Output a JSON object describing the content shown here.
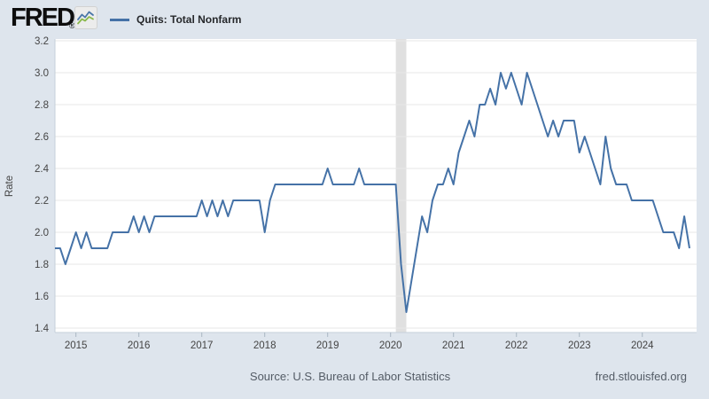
{
  "header": {
    "logo_text": "FRED",
    "registered_mark": "®",
    "legend_label": "Quits: Total Nonfarm"
  },
  "footer": {
    "source": "Source: U.S. Bureau of Labor Statistics",
    "site": "fred.stlouisfed.org"
  },
  "colors": {
    "background": "#dee5ed",
    "plot_bg": "#ffffff",
    "line": "#4572a7",
    "grid": "#e7e7e7",
    "axis": "#c6d0da",
    "tick": "#aab7c3",
    "tick_label": "#444444",
    "recession_band": "#e0e0e0",
    "legend_swatch": "#4572a7",
    "logo_icon_blue": "#4a76a8",
    "logo_icon_green": "#8ab84a"
  },
  "chart_data": {
    "type": "line",
    "series_name": "Quits: Total Nonfarm",
    "ylabel": "Rate",
    "ylim": [
      1.4,
      3.2
    ],
    "y_tick_step": 0.2,
    "y_tick_labels": [
      "1.4",
      "1.6",
      "1.8",
      "2.0",
      "2.2",
      "2.4",
      "2.6",
      "2.8",
      "3.0",
      "3.2"
    ],
    "grid": true,
    "legend_position": "top-left",
    "frequency": "monthly",
    "start_month": "2014-09",
    "end_month": "2024-10",
    "values": [
      1.9,
      1.9,
      1.8,
      1.9,
      2.0,
      1.9,
      2.0,
      1.9,
      1.9,
      1.9,
      1.9,
      2.0,
      2.0,
      2.0,
      2.0,
      2.1,
      2.0,
      2.1,
      2.0,
      2.1,
      2.1,
      2.1,
      2.1,
      2.1,
      2.1,
      2.1,
      2.1,
      2.1,
      2.2,
      2.1,
      2.2,
      2.1,
      2.2,
      2.1,
      2.2,
      2.2,
      2.2,
      2.2,
      2.2,
      2.2,
      2.0,
      2.2,
      2.3,
      2.3,
      2.3,
      2.3,
      2.3,
      2.3,
      2.3,
      2.3,
      2.3,
      2.3,
      2.4,
      2.3,
      2.3,
      2.3,
      2.3,
      2.3,
      2.4,
      2.3,
      2.3,
      2.3,
      2.3,
      2.3,
      2.3,
      2.3,
      1.8,
      1.5,
      1.7,
      1.9,
      2.1,
      2.0,
      2.2,
      2.3,
      2.3,
      2.4,
      2.3,
      2.5,
      2.6,
      2.7,
      2.6,
      2.8,
      2.8,
      2.9,
      2.8,
      3.0,
      2.9,
      3.0,
      2.9,
      2.8,
      3.0,
      2.9,
      2.8,
      2.7,
      2.6,
      2.7,
      2.6,
      2.7,
      2.7,
      2.7,
      2.5,
      2.6,
      2.5,
      2.4,
      2.3,
      2.6,
      2.4,
      2.3,
      2.3,
      2.3,
      2.2,
      2.2,
      2.2,
      2.2,
      2.2,
      2.1,
      2.0,
      2.0,
      2.0,
      1.9,
      2.1,
      1.9
    ],
    "x_ticks": [
      {
        "label": "2015",
        "month_index": 4
      },
      {
        "label": "2016",
        "month_index": 16
      },
      {
        "label": "2017",
        "month_index": 28
      },
      {
        "label": "2018",
        "month_index": 40
      },
      {
        "label": "2019",
        "month_index": 52
      },
      {
        "label": "2020",
        "month_index": 64
      },
      {
        "label": "2021",
        "month_index": 76
      },
      {
        "label": "2022",
        "month_index": 88
      },
      {
        "label": "2023",
        "month_index": 100
      },
      {
        "label": "2024",
        "month_index": 112
      }
    ],
    "recessions": [
      {
        "start_month": "2020-02",
        "end_month": "2020-04",
        "start_index": 65,
        "end_index": 67
      }
    ]
  }
}
